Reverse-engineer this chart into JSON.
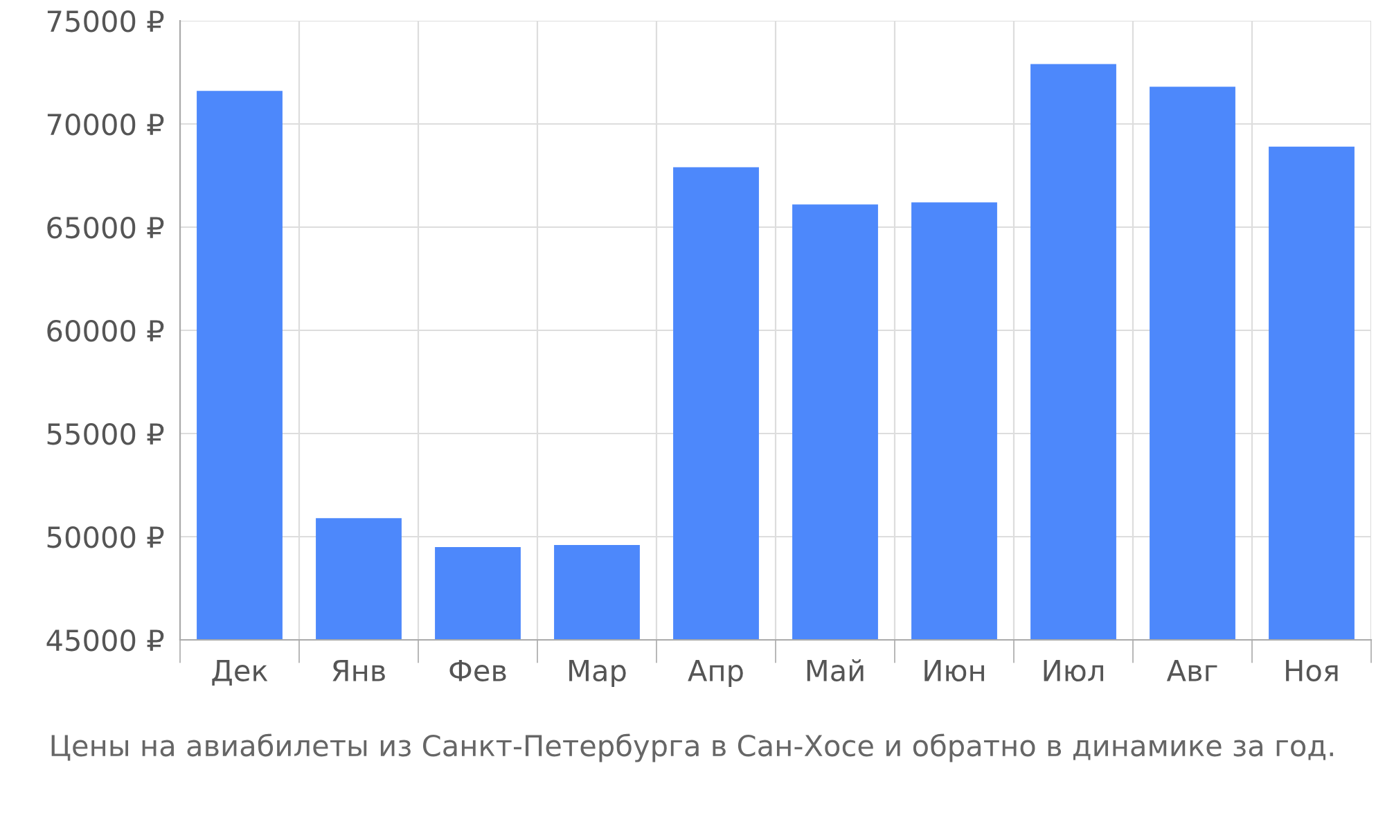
{
  "chart_data": {
    "type": "bar",
    "categories": [
      "Дек",
      "Янв",
      "Фев",
      "Мар",
      "Апр",
      "Май",
      "Июн",
      "Июл",
      "Авг",
      "Ноя"
    ],
    "values": [
      71600,
      50900,
      49500,
      49600,
      67900,
      66100,
      66200,
      72900,
      71800,
      68900
    ],
    "color": "#4d88fb",
    "ylim": [
      45000,
      75000
    ],
    "yticks": [
      {
        "value": 45000,
        "label": "45000 ₽"
      },
      {
        "value": 50000,
        "label": "50000 ₽"
      },
      {
        "value": 55000,
        "label": "55000 ₽"
      },
      {
        "value": 60000,
        "label": "60000 ₽"
      },
      {
        "value": 65000,
        "label": "65000 ₽"
      },
      {
        "value": 70000,
        "label": "70000 ₽"
      },
      {
        "value": 75000,
        "label": "75000 ₽"
      }
    ],
    "grid": true,
    "annotations": [
      "Цены на авиабилеты из Санкт-Петербурга в Сан-Хосе и обратно в динамике за год."
    ]
  }
}
